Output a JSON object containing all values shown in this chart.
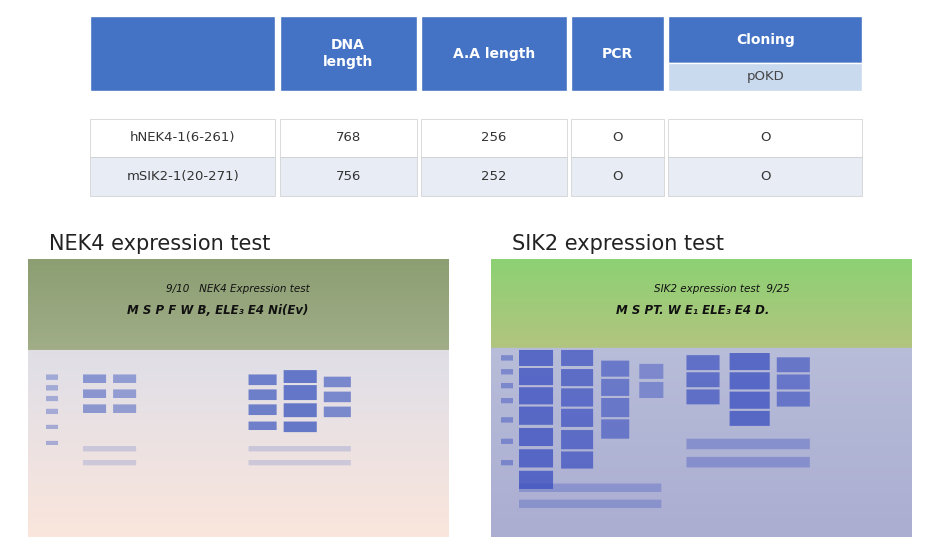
{
  "table": {
    "header_bg": "#4472C4",
    "subheader_bg": "#C9D9EE",
    "row1_bg": "#FFFFFF",
    "row2_bg": "#E8EDF5",
    "rows": [
      [
        "hNEK4-1(6-261)",
        "768",
        "256",
        "O",
        "O"
      ],
      [
        "mSIK2-1(20-271)",
        "756",
        "252",
        "O",
        "O"
      ]
    ]
  },
  "labels": {
    "nek4_title": "NEK4 expression test",
    "sik2_title": "SIK2 expression test",
    "title_fontsize": 15,
    "title_color": "#222222"
  },
  "background_color": "#FFFFFF",
  "figsize": [
    9.39,
    5.48
  ],
  "dpi": 100
}
